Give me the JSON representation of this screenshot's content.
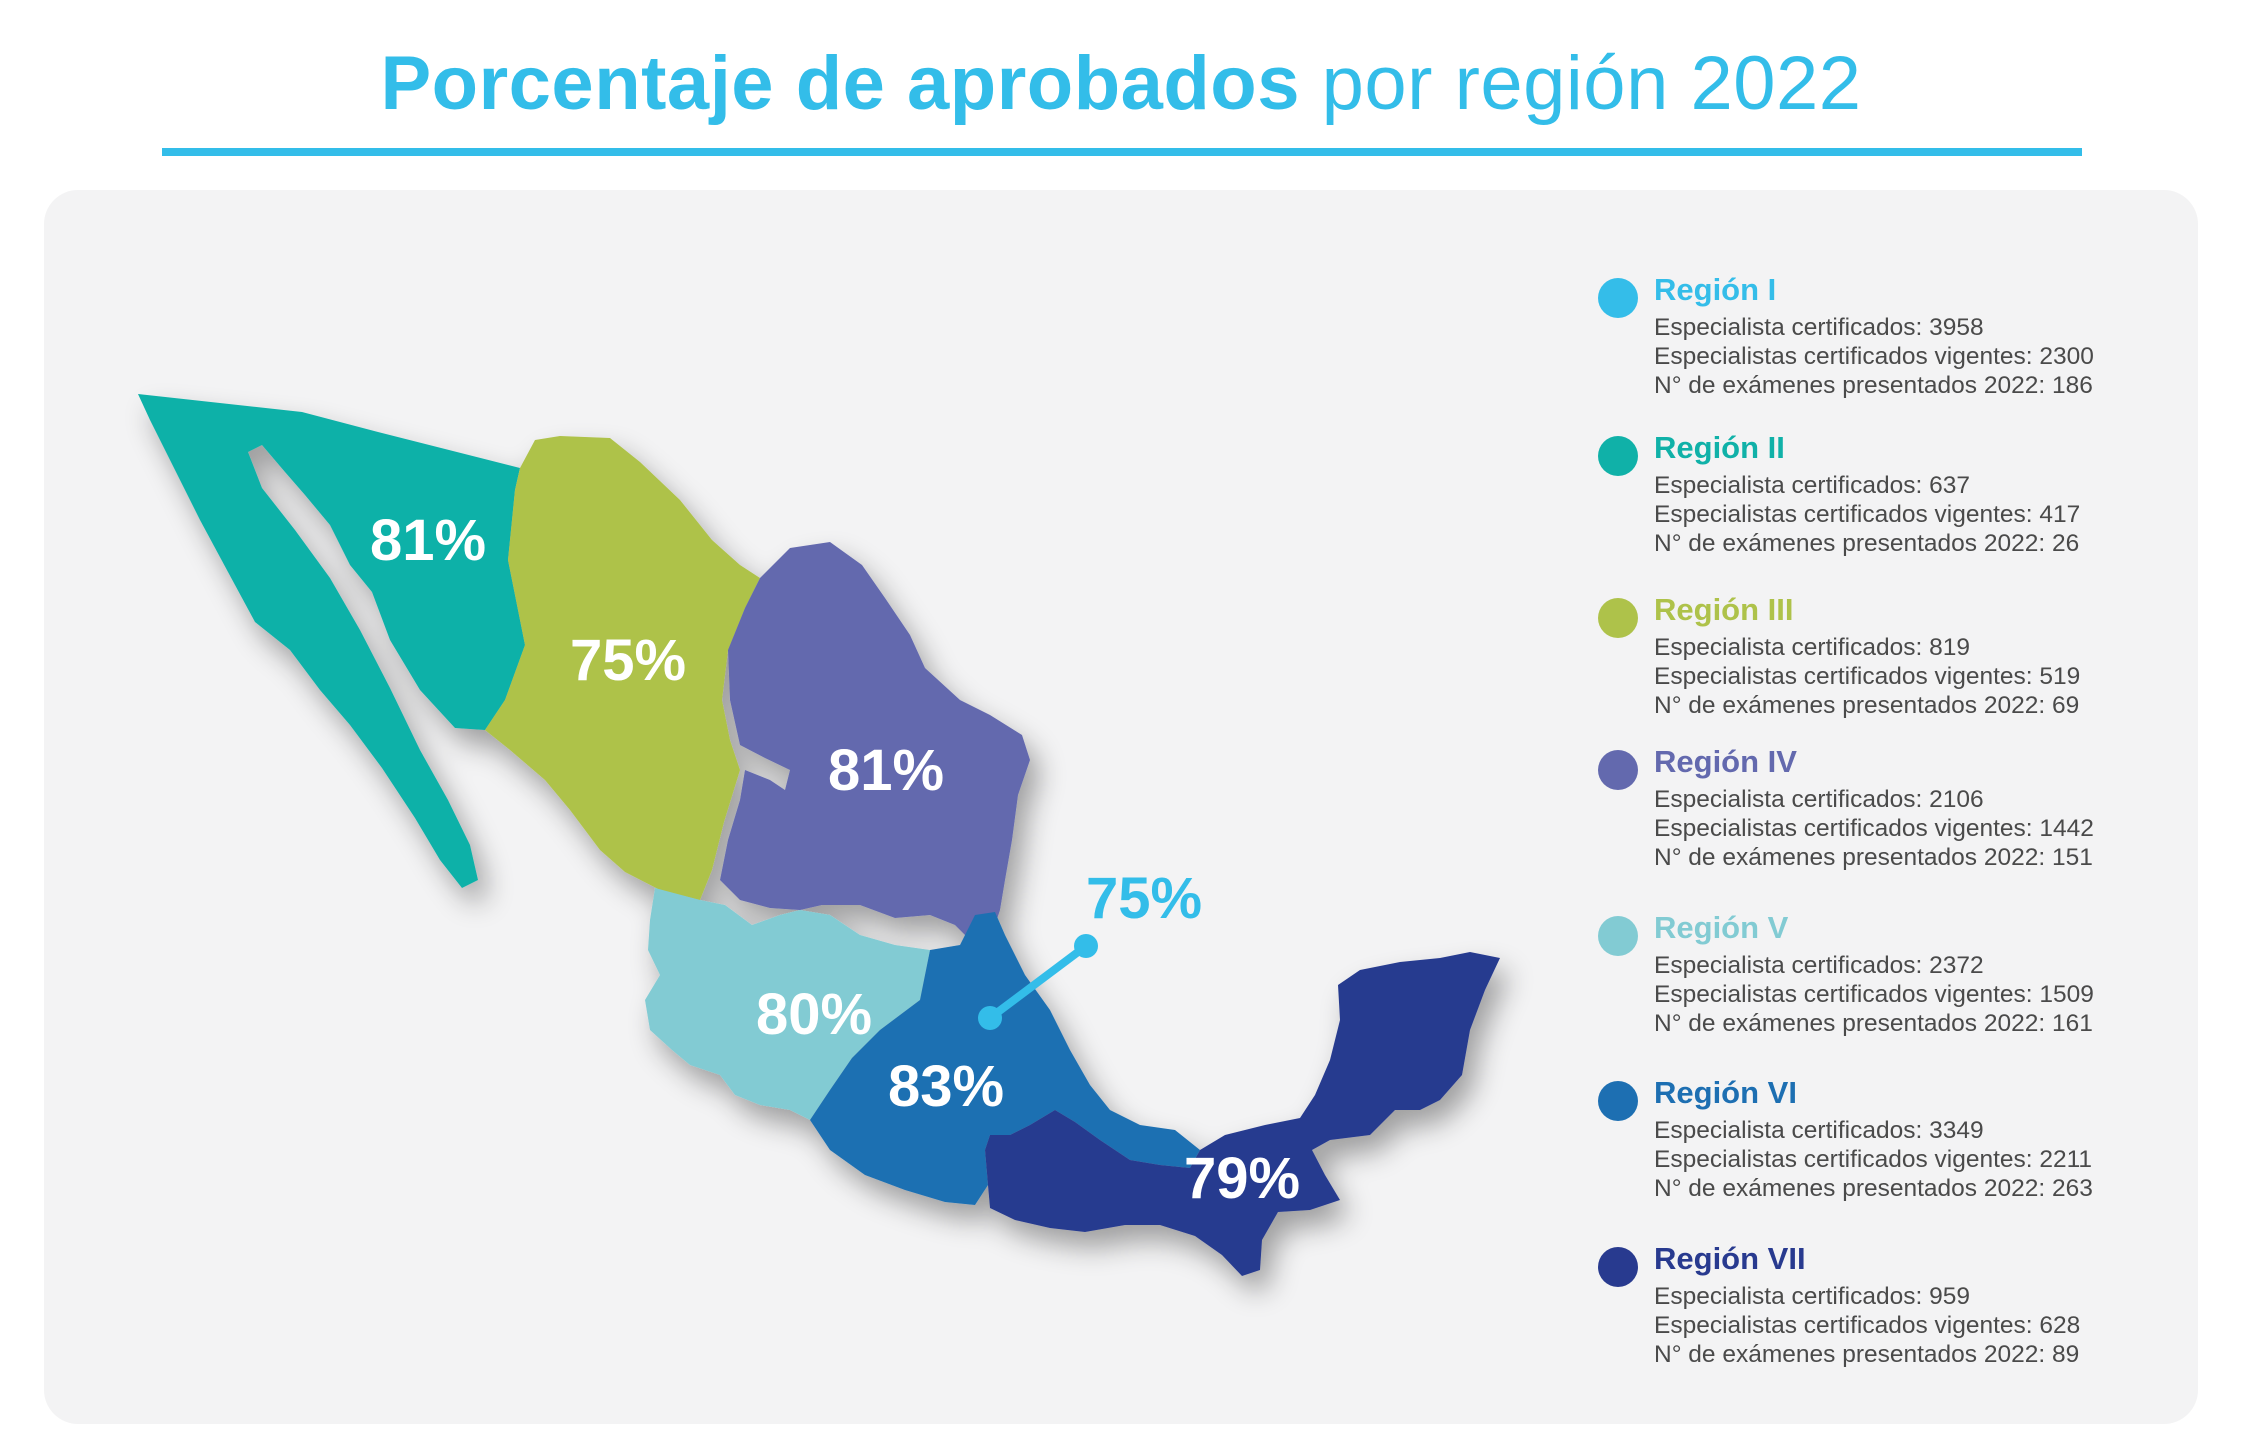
{
  "title": {
    "bold": "Porcentaje de aprobados",
    "regular": " por región 2022"
  },
  "colors": {
    "title": "#33bde9",
    "region_I": "#34bde9",
    "region_II": "#10b1a8",
    "region_III": "#aec24a",
    "region_IV": "#6369ae",
    "region_V": "#82cbd3",
    "region_VI": "#1d6fb2",
    "region_VII": "#283a8f"
  },
  "map_labels": {
    "region_II": "81%",
    "region_III": "75%",
    "region_IV": "81%",
    "region_V": "80%",
    "region_VI": "83%",
    "region_VII": "79%",
    "region_I": "75%"
  },
  "legend": [
    {
      "name": "Región I",
      "color": "#34bde9",
      "lines": [
        "Especialista certificados: 3958",
        "Especialistas certificados vigentes: 2300",
        "N° de exámenes presentados 2022: 186"
      ]
    },
    {
      "name": "Región II",
      "color": "#10b1a8",
      "lines": [
        "Especialista certificados: 637",
        "Especialistas certificados vigentes: 417",
        "N° de exámenes presentados 2022: 26"
      ]
    },
    {
      "name": "Región III",
      "color": "#aec24a",
      "lines": [
        "Especialista certificados: 819",
        "Especialistas certificados vigentes: 519",
        "N° de exámenes presentados 2022: 69"
      ]
    },
    {
      "name": "Región IV",
      "color": "#6369ae",
      "lines": [
        "Especialista certificados: 2106",
        "Especialistas certificados vigentes: 1442",
        "N° de exámenes presentados 2022: 151"
      ]
    },
    {
      "name": "Región V",
      "color": "#82cbd3",
      "lines": [
        "Especialista certificados: 2372",
        "Especialistas certificados vigentes: 1509",
        "N° de exámenes presentados 2022: 161"
      ]
    },
    {
      "name": "Región VI",
      "color": "#1d6fb2",
      "lines": [
        "Especialista certificados: 3349",
        "Especialistas certificados vigentes: 2211",
        "N° de exámenes presentados 2022: 263"
      ]
    },
    {
      "name": "Región VII",
      "color": "#283a8f",
      "lines": [
        "Especialista certificados: 959",
        "Especialistas certificados vigentes: 628",
        "N° de exámenes presentados 2022: 89"
      ]
    }
  ]
}
